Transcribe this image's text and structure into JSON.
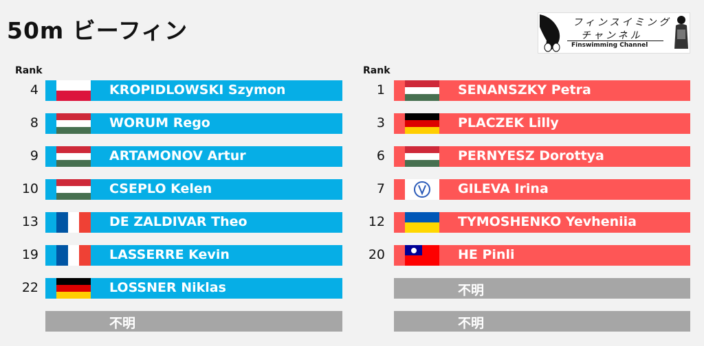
{
  "title": "50m ビーフィン",
  "logo": {
    "line1": "フィンスイミング",
    "line2": "チャンネル",
    "line3": "Finswimming Channel"
  },
  "rank_header": "Rank",
  "colors": {
    "men": "#06aee6",
    "women": "#fe5656",
    "unknown": "#a6a6a6"
  },
  "left": [
    {
      "rank": "4",
      "name": "KROPIDLOWSKI Szymon",
      "flag": "poland-flag-icon"
    },
    {
      "rank": "8",
      "name": "WORUM Rego",
      "flag": "hungary-flag-icon"
    },
    {
      "rank": "9",
      "name": "ARTAMONOV Artur",
      "flag": "hungary-flag-icon"
    },
    {
      "rank": "10",
      "name": "CSEPLO Kelen",
      "flag": "hungary-flag-icon"
    },
    {
      "rank": "13",
      "name": "DE ZALDIVAR Theo",
      "flag": "france-flag-icon"
    },
    {
      "rank": "19",
      "name": "LASSERRE Kevin",
      "flag": "france-flag-icon"
    },
    {
      "rank": "22",
      "name": "LOSSNER Niklas",
      "flag": "germany-flag-icon"
    },
    {
      "rank": "",
      "name": "不明",
      "flag": ""
    }
  ],
  "right": [
    {
      "rank": "1",
      "name": "SENANSZKY Petra",
      "flag": "hungary-flag-icon"
    },
    {
      "rank": "3",
      "name": "PLACZEK Lilly",
      "flag": "germany-flag-icon"
    },
    {
      "rank": "6",
      "name": "PERNYESZ Dorottya",
      "flag": "hungary-flag-icon"
    },
    {
      "rank": "7",
      "name": "GILEVA Irina",
      "flag": "emblem-flag-icon"
    },
    {
      "rank": "12",
      "name": "TYMOSHENKO Yevheniia",
      "flag": "ukraine-flag-icon"
    },
    {
      "rank": "20",
      "name": "HE Pinli",
      "flag": "taiwan-flag-icon"
    },
    {
      "rank": "",
      "name": "不明",
      "flag": ""
    },
    {
      "rank": "",
      "name": "不明",
      "flag": ""
    }
  ]
}
